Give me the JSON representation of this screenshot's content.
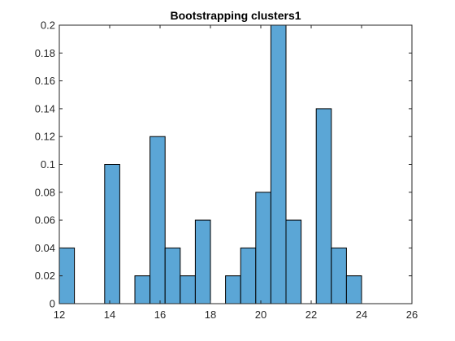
{
  "chart_data": {
    "type": "bar",
    "title": "Bootstrapping clusters1",
    "xlabel": "",
    "ylabel": "",
    "xlim": [
      12,
      26
    ],
    "ylim": [
      0,
      0.2
    ],
    "bin_width": 0.6,
    "bins": [
      {
        "start": 12.0,
        "value": 0.04
      },
      {
        "start": 12.6,
        "value": 0
      },
      {
        "start": 13.2,
        "value": 0
      },
      {
        "start": 13.8,
        "value": 0.1
      },
      {
        "start": 14.4,
        "value": 0
      },
      {
        "start": 15.0,
        "value": 0.02
      },
      {
        "start": 15.6,
        "value": 0.12
      },
      {
        "start": 16.2,
        "value": 0.04
      },
      {
        "start": 16.8,
        "value": 0.02
      },
      {
        "start": 17.4,
        "value": 0.06
      },
      {
        "start": 18.0,
        "value": 0
      },
      {
        "start": 18.6,
        "value": 0.02
      },
      {
        "start": 19.2,
        "value": 0.04
      },
      {
        "start": 19.8,
        "value": 0.08
      },
      {
        "start": 20.4,
        "value": 0.2
      },
      {
        "start": 21.0,
        "value": 0.06
      },
      {
        "start": 21.6,
        "value": 0
      },
      {
        "start": 22.2,
        "value": 0.14
      },
      {
        "start": 22.8,
        "value": 0.04
      },
      {
        "start": 23.4,
        "value": 0.02
      }
    ],
    "x_ticks": [
      "12",
      "14",
      "16",
      "18",
      "20",
      "22",
      "24",
      "26"
    ],
    "y_ticks": [
      "0",
      "0.02",
      "0.04",
      "0.06",
      "0.08",
      "0.1",
      "0.12",
      "0.14",
      "0.16",
      "0.18",
      "0.2"
    ],
    "x_tick_values": [
      12,
      14,
      16,
      18,
      20,
      22,
      24,
      26
    ],
    "y_tick_values": [
      0,
      0.02,
      0.04,
      0.06,
      0.08,
      0.1,
      0.12,
      0.14,
      0.16,
      0.18,
      0.2
    ],
    "grid": false,
    "bar_color": "#5ba6d6",
    "edge_color": "#000000"
  }
}
